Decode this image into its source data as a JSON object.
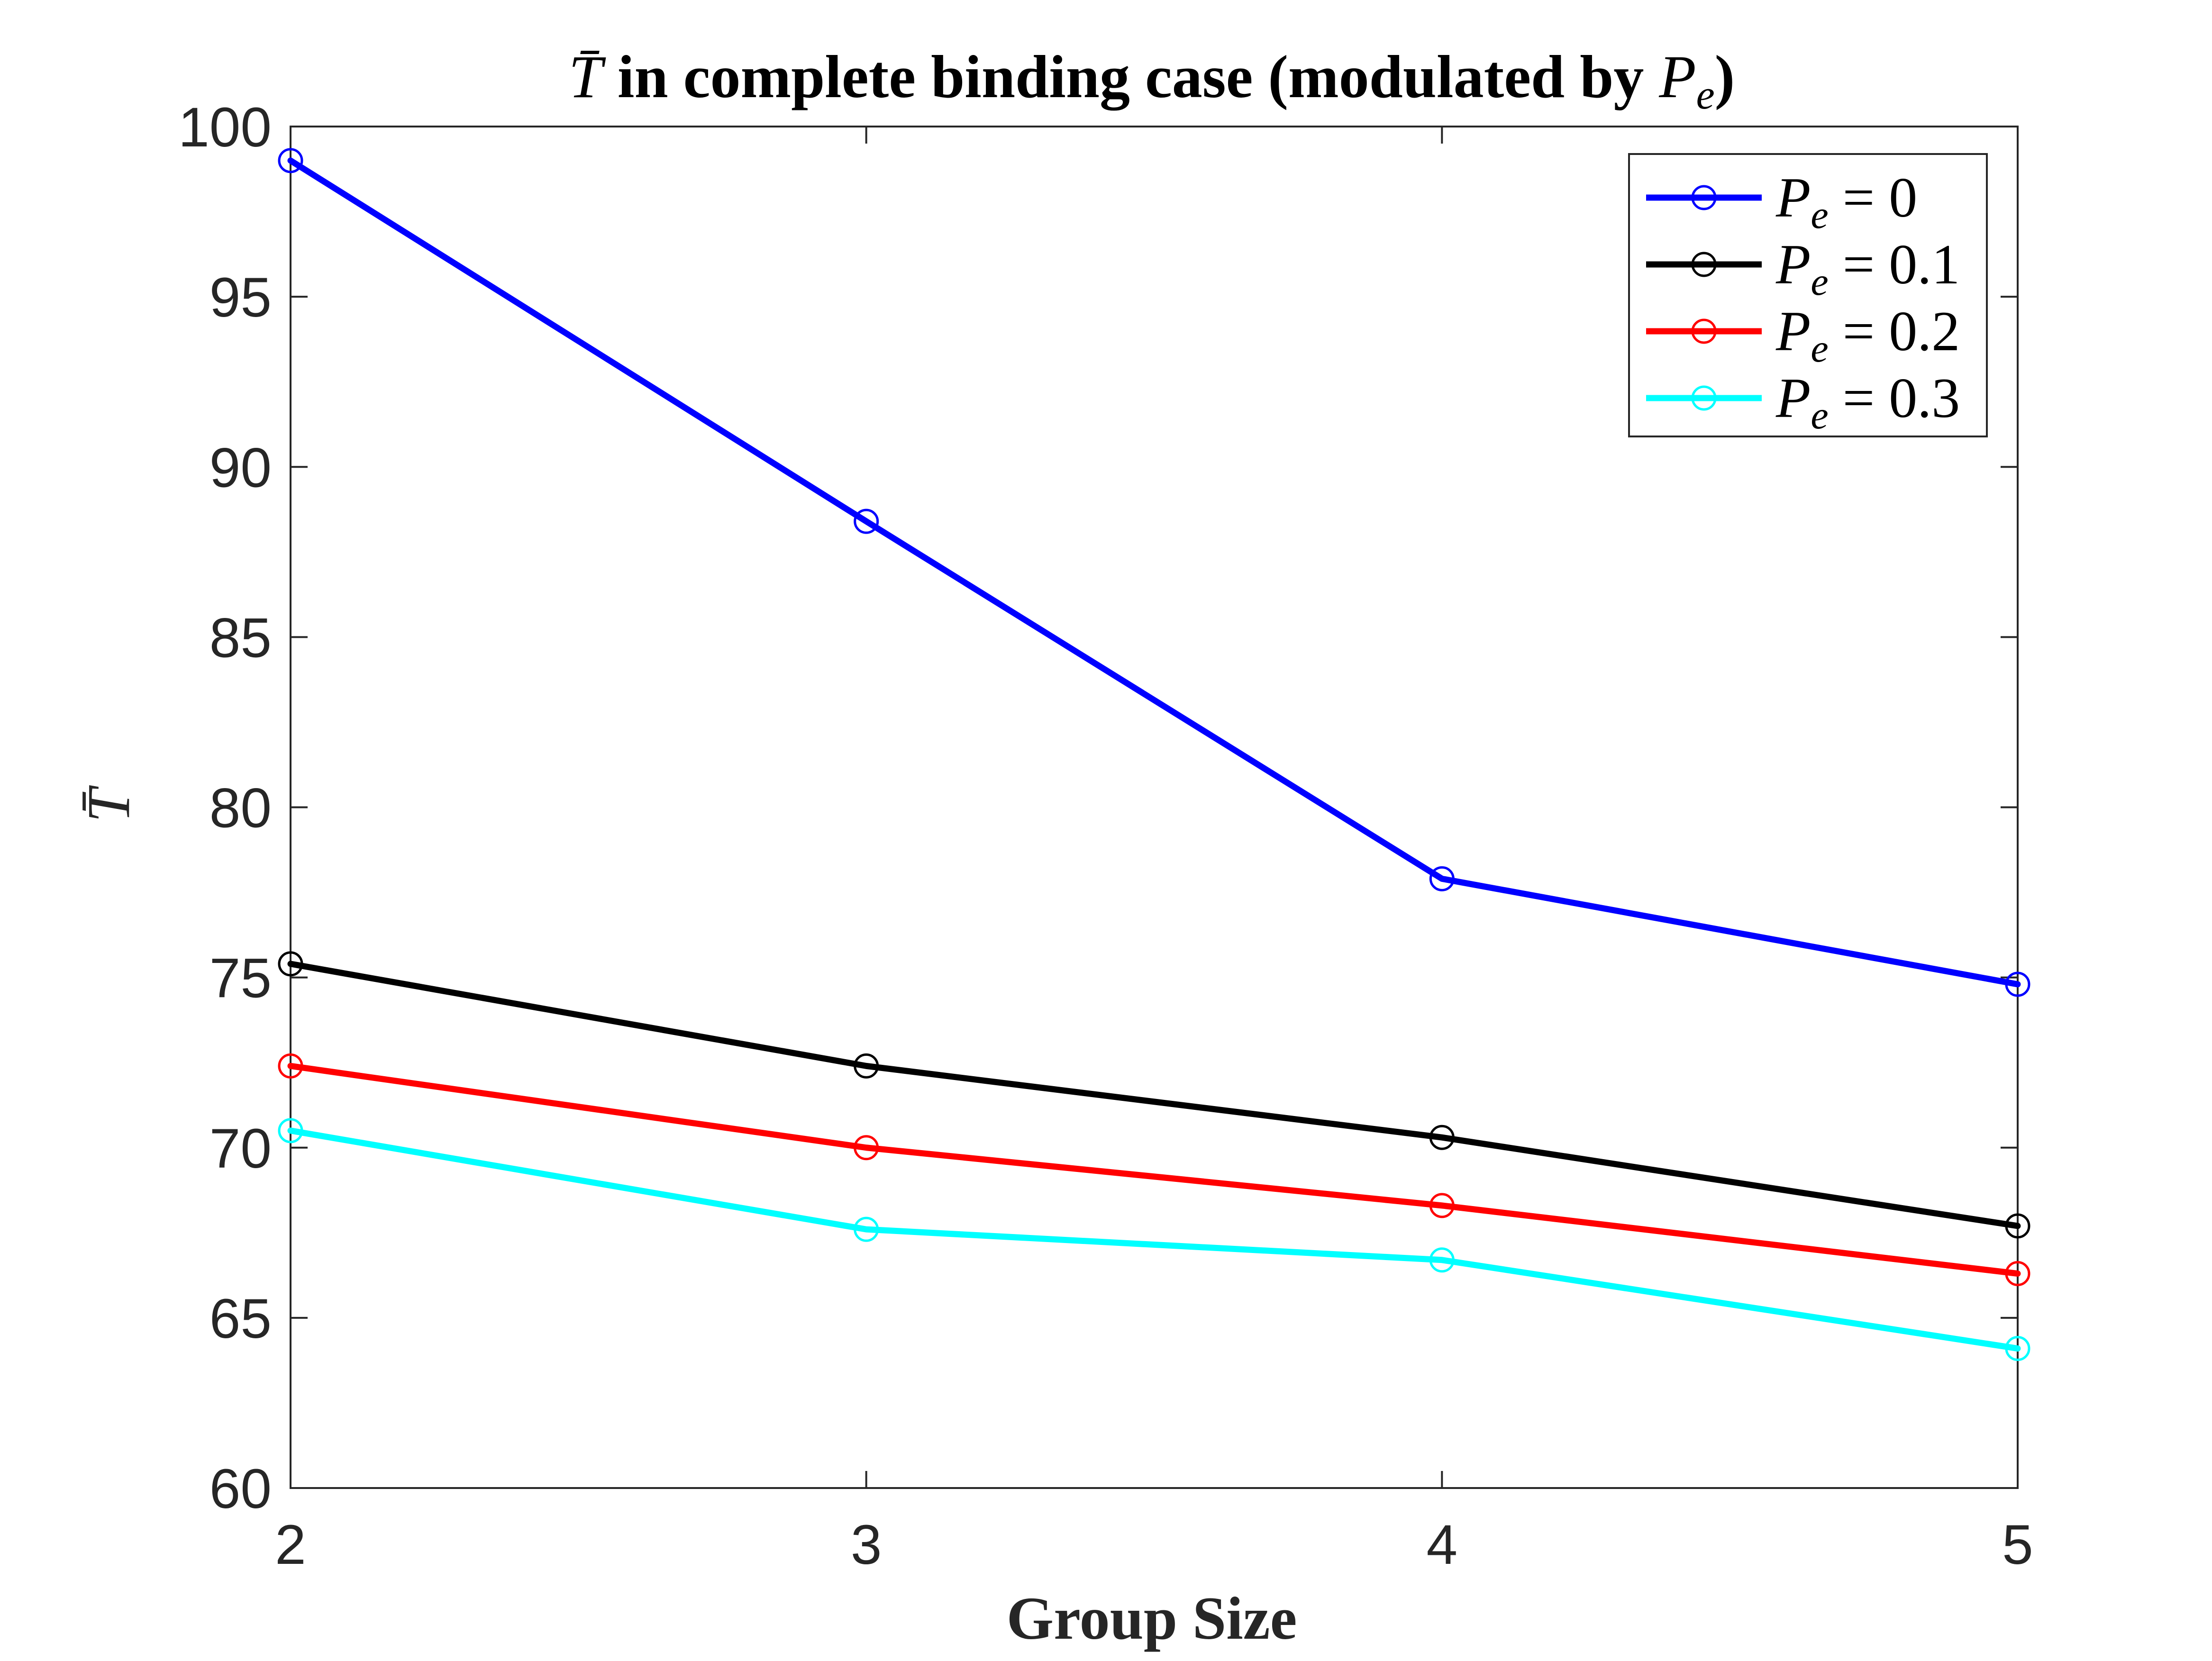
{
  "chart_data": {
    "type": "line",
    "title": "T̄ in complete binding case (modulated by Pₑ)",
    "title_parts": {
      "symbol": "T̄",
      "main": " in complete binding case (modulated by ",
      "var": "P",
      "sub": "e",
      "close": ")"
    },
    "xlabel": "Group Size",
    "ylabel": "T̄",
    "x": [
      2,
      3,
      4,
      5
    ],
    "xticks": [
      "2",
      "3",
      "4",
      "5"
    ],
    "xlim": [
      2,
      5
    ],
    "ylim": [
      60,
      100
    ],
    "yticks": [
      "60",
      "65",
      "70",
      "75",
      "80",
      "85",
      "90",
      "95",
      "100"
    ],
    "grid": false,
    "legend_position": "top-right",
    "series": [
      {
        "name": "Pₑ = 0",
        "legend_var": "P",
        "legend_sub": "e",
        "legend_rhs": "= 0",
        "color": "#0000ff",
        "values": [
          99.0,
          88.4,
          77.9,
          74.8
        ]
      },
      {
        "name": "Pₑ = 0.1",
        "legend_var": "P",
        "legend_sub": "e",
        "legend_rhs": "= 0.1",
        "color": "#000000",
        "values": [
          75.4,
          72.4,
          70.3,
          67.7
        ]
      },
      {
        "name": "Pₑ = 0.2",
        "legend_var": "P",
        "legend_sub": "e",
        "legend_rhs": "= 0.2",
        "color": "#ff0000",
        "values": [
          72.4,
          70.0,
          68.3,
          66.3
        ]
      },
      {
        "name": "Pₑ = 0.3",
        "legend_var": "P",
        "legend_sub": "e",
        "legend_rhs": "= 0.3",
        "color": "#00ffff",
        "values": [
          70.5,
          67.6,
          66.7,
          64.1
        ]
      }
    ]
  }
}
